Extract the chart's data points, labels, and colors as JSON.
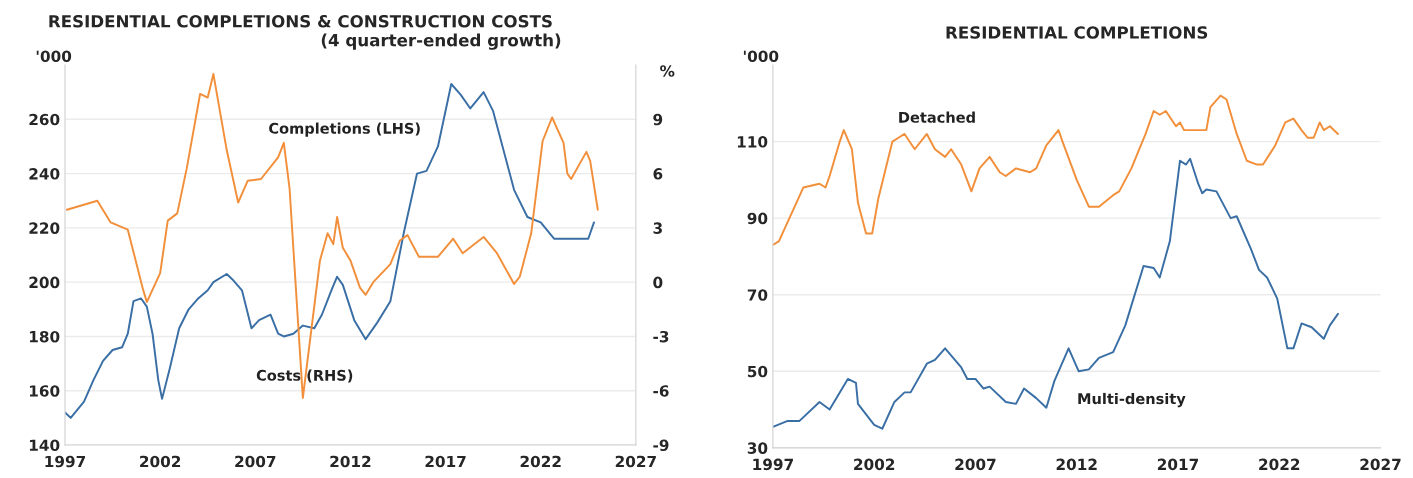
{
  "chart_data": [
    {
      "type": "line",
      "title": "RESIDENTIAL COMPLETIONS & CONSTRUCTION COSTS",
      "subtitle": "(4 quarter-ended growth)",
      "ylabel": "'000",
      "y2label": "%",
      "xlim": [
        1997,
        2027
      ],
      "xticks": [
        1997,
        2002,
        2007,
        2012,
        2017,
        2022,
        2027
      ],
      "ylim": [
        140,
        280
      ],
      "yticks": [
        140,
        160,
        180,
        200,
        220,
        240,
        260
      ],
      "y2lim": [
        -9,
        12
      ],
      "y2ticks": [
        -9,
        -6,
        -3,
        0,
        3,
        6,
        9
      ],
      "grid": "y",
      "legend": false,
      "marker": "none",
      "line_style": "solid",
      "series": [
        {
          "name": "Completions (LHS)",
          "color": "#3a6fa5",
          "axis": "y",
          "x": [
            1997.0,
            1997.3,
            1998.0,
            1998.5,
            1999.0,
            1999.5,
            2000.0,
            2000.3,
            2000.6,
            2001.0,
            2001.3,
            2001.6,
            2001.9,
            2002.1,
            2002.5,
            2003.0,
            2003.5,
            2004.0,
            2004.5,
            2004.8,
            2005.5,
            2005.8,
            2006.3,
            2006.8,
            2007.2,
            2007.8,
            2008.2,
            2008.5,
            2009.0,
            2009.5,
            2010.1,
            2010.5,
            2011.0,
            2011.3,
            2011.6,
            2012.2,
            2012.8,
            2013.4,
            2014.1,
            2014.8,
            2015.5,
            2016.0,
            2016.6,
            2017.3,
            2017.8,
            2018.3,
            2019.0,
            2019.5,
            2020.6,
            2021.3,
            2022.0,
            2022.7,
            2023.4,
            2024.1,
            2024.5,
            2024.8
          ],
          "values": [
            152,
            150,
            156,
            164,
            171,
            175,
            176,
            181,
            193,
            194,
            191,
            181,
            164,
            157,
            168,
            183,
            190,
            194,
            197,
            200,
            203,
            201,
            197,
            183,
            186,
            188,
            181,
            180,
            181,
            184,
            183,
            188,
            197,
            202,
            199,
            186,
            179,
            185,
            193,
            218,
            240,
            241,
            250,
            273,
            269,
            264,
            270,
            263,
            234,
            224,
            222,
            216,
            216,
            216,
            216,
            222
          ]
        },
        {
          "name": "Costs (RHS)",
          "color": "#f28f3b",
          "axis": "y2",
          "x": [
            1997.1,
            1998.7,
            1999.4,
            2000.3,
            2001.1,
            2001.3,
            2002.0,
            2002.4,
            2002.9,
            2003.4,
            2004.1,
            2004.5,
            2004.8,
            2005.5,
            2006.1,
            2006.6,
            2007.3,
            2008.2,
            2008.5,
            2008.8,
            2009.5,
            2010.4,
            2010.8,
            2011.1,
            2011.3,
            2011.6,
            2012.0,
            2012.5,
            2012.8,
            2013.2,
            2014.1,
            2014.6,
            2015.0,
            2015.6,
            2016.6,
            2017.4,
            2017.9,
            2019.0,
            2019.7,
            2020.6,
            2020.9,
            2021.5,
            2022.1,
            2022.6,
            2023.2,
            2023.4,
            2023.6,
            2024.4,
            2024.6,
            2025.0
          ],
          "values": [
            4.0,
            4.5,
            3.3,
            2.9,
            -0.4,
            -1.1,
            0.5,
            3.4,
            3.8,
            6.3,
            10.4,
            10.2,
            11.5,
            7.3,
            4.4,
            5.6,
            5.7,
            6.9,
            7.7,
            5.2,
            -6.4,
            1.2,
            2.7,
            2.1,
            3.6,
            1.9,
            1.2,
            -0.3,
            -0.7,
            0.0,
            1.0,
            2.3,
            2.6,
            1.4,
            1.4,
            2.4,
            1.6,
            2.5,
            1.6,
            -0.1,
            0.3,
            2.7,
            7.8,
            9.1,
            7.7,
            6.0,
            5.7,
            7.2,
            6.7,
            4.0
          ]
        }
      ]
    },
    {
      "type": "line",
      "title": "RESIDENTIAL COMPLETIONS",
      "ylabel": "'000",
      "xlim": [
        1997,
        2027
      ],
      "xticks": [
        1997,
        2002,
        2007,
        2012,
        2017,
        2022,
        2027
      ],
      "ylim": [
        30,
        130
      ],
      "yticks": [
        30,
        50,
        70,
        90,
        110
      ],
      "grid": "y",
      "legend": false,
      "marker": "none",
      "line_style": "solid",
      "series": [
        {
          "name": "Detached",
          "color": "#f28f3b",
          "x": [
            1997.0,
            1997.3,
            1998.5,
            1999.3,
            1999.6,
            1999.8,
            2000.3,
            2000.5,
            2000.9,
            2001.2,
            2001.6,
            2001.9,
            2002.2,
            2002.9,
            2003.2,
            2003.5,
            2004.0,
            2004.6,
            2005.0,
            2005.5,
            2005.8,
            2006.3,
            2006.8,
            2007.2,
            2007.7,
            2008.2,
            2008.5,
            2009.0,
            2009.7,
            2010.0,
            2010.5,
            2011.1,
            2011.3,
            2012.0,
            2012.6,
            2013.1,
            2013.8,
            2014.1,
            2014.7,
            2015.4,
            2015.8,
            2016.1,
            2016.4,
            2016.9,
            2017.1,
            2017.3,
            2018.0,
            2018.4,
            2018.6,
            2019.1,
            2019.4,
            2019.9,
            2020.4,
            2020.9,
            2021.2,
            2021.8,
            2022.3,
            2022.7,
            2023.1,
            2023.4,
            2023.7,
            2024.0,
            2024.2,
            2024.5,
            2024.9
          ],
          "values": [
            83,
            84,
            98,
            99,
            98,
            101,
            110,
            113,
            108,
            94,
            86,
            86,
            95,
            110,
            111,
            112,
            108,
            112,
            108,
            106,
            108,
            104,
            97,
            103,
            106,
            102,
            101,
            103,
            102,
            103,
            109,
            113,
            110,
            100,
            93,
            93,
            96,
            97,
            103,
            112,
            118,
            117,
            118,
            114,
            115,
            113,
            113,
            113,
            119,
            122,
            121,
            112,
            105,
            104,
            104,
            109,
            115,
            116,
            113,
            111,
            111,
            115,
            113,
            114,
            112
          ]
        },
        {
          "name": "Multi-density",
          "color": "#3a6fa5",
          "x": [
            1997.0,
            1997.7,
            1998.3,
            1999.3,
            1999.8,
            2000.7,
            2001.1,
            2001.2,
            2002.0,
            2002.4,
            2003.0,
            2003.5,
            2003.8,
            2004.6,
            2005.0,
            2005.5,
            2006.3,
            2006.6,
            2007.0,
            2007.4,
            2007.7,
            2008.5,
            2009.0,
            2009.4,
            2010.0,
            2010.5,
            2010.9,
            2011.6,
            2012.1,
            2012.6,
            2013.1,
            2013.8,
            2014.4,
            2015.3,
            2015.8,
            2016.1,
            2016.6,
            2017.1,
            2017.4,
            2017.6,
            2018.0,
            2018.2,
            2018.4,
            2018.9,
            2019.6,
            2019.9,
            2020.6,
            2021.0,
            2021.4,
            2021.9,
            2022.4,
            2022.7,
            2023.1,
            2023.6,
            2024.2,
            2024.5,
            2024.9
          ],
          "values": [
            35.5,
            37,
            37,
            42,
            40,
            48,
            47,
            41.5,
            36,
            35,
            42,
            44.5,
            44.5,
            52,
            53,
            56,
            51,
            48,
            48,
            45.5,
            46,
            42,
            41.5,
            45.5,
            43,
            40.5,
            47.5,
            56,
            50,
            50.5,
            53.5,
            55,
            62,
            77.5,
            77,
            74.5,
            84,
            105,
            104,
            105.5,
            99,
            96.5,
            97.5,
            97,
            90,
            90.5,
            82,
            76.5,
            74.5,
            69,
            56,
            56,
            62.5,
            61.5,
            58.5,
            62,
            65
          ]
        }
      ]
    }
  ]
}
